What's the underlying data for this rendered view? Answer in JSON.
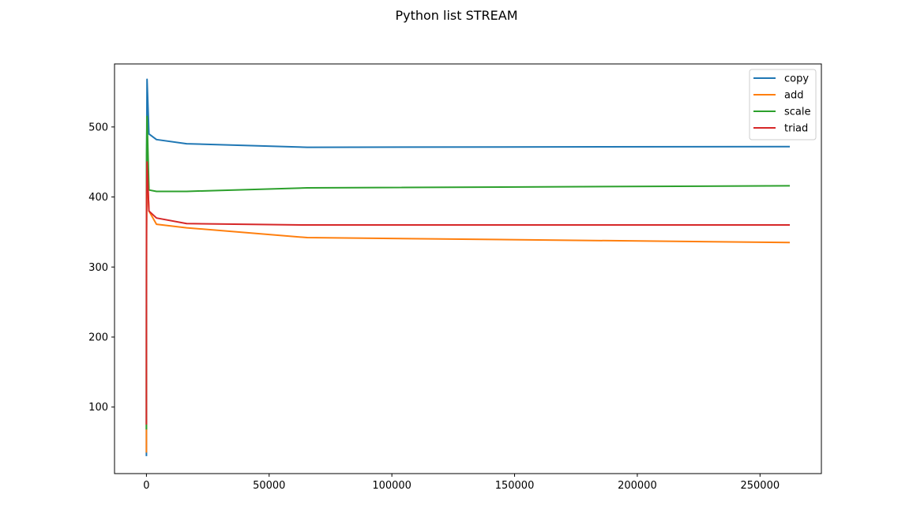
{
  "chart_data": {
    "type": "line",
    "title": "Python list STREAM",
    "xlabel": "",
    "ylabel": "",
    "xlim": [
      -13000,
      275000
    ],
    "ylim": [
      5,
      590
    ],
    "xticks": [
      0,
      50000,
      100000,
      150000,
      200000,
      250000
    ],
    "xtick_labels": [
      "0",
      "50000",
      "100000",
      "150000",
      "200000",
      "250000"
    ],
    "yticks": [
      100,
      200,
      300,
      400,
      500
    ],
    "ytick_labels": [
      "100",
      "200",
      "300",
      "400",
      "500"
    ],
    "grid": false,
    "legend_position": "upper right",
    "series": [
      {
        "name": "copy",
        "color": "#1f77b4",
        "x": [
          1,
          4,
          16,
          64,
          256,
          1024,
          4096,
          16384,
          65536,
          262144
        ],
        "y": [
          30,
          80,
          250,
          430,
          568,
          490,
          482,
          476,
          471,
          472
        ]
      },
      {
        "name": "add",
        "color": "#ff7f0e",
        "x": [
          1,
          4,
          16,
          64,
          256,
          1024,
          4096,
          16384,
          65536,
          262144
        ],
        "y": [
          35,
          70,
          200,
          350,
          448,
          380,
          361,
          356,
          342,
          335
        ]
      },
      {
        "name": "scale",
        "color": "#2ca02c",
        "x": [
          1,
          4,
          16,
          64,
          256,
          1024,
          4096,
          16384,
          65536,
          262144
        ],
        "y": [
          68,
          150,
          330,
          460,
          515,
          410,
          408,
          408,
          413,
          416
        ]
      },
      {
        "name": "triad",
        "color": "#d62728",
        "x": [
          1,
          4,
          16,
          64,
          256,
          1024,
          4096,
          16384,
          65536,
          262144
        ],
        "y": [
          75,
          150,
          300,
          400,
          450,
          380,
          370,
          362,
          360,
          360
        ]
      }
    ]
  }
}
